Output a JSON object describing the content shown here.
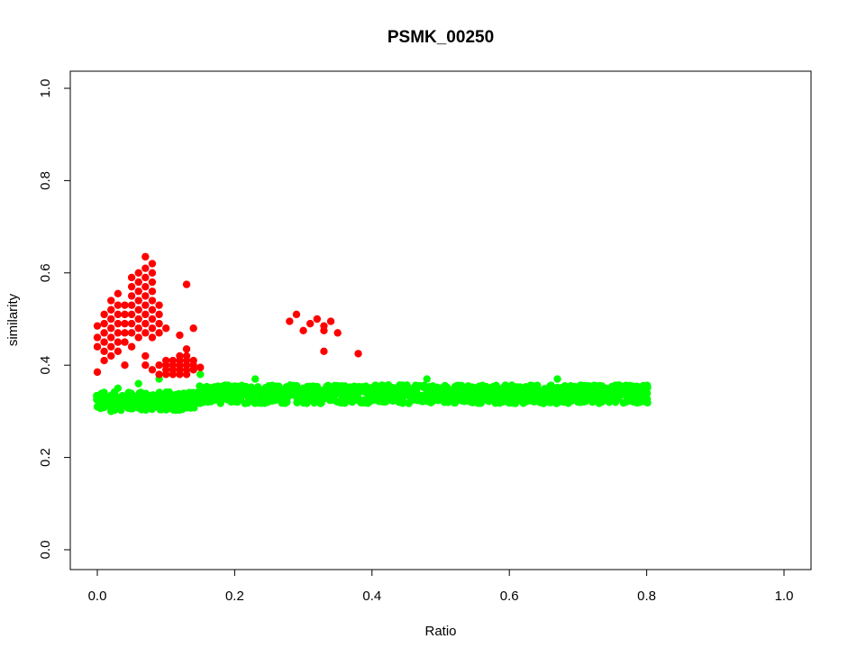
{
  "chart_data": {
    "type": "scatter",
    "title": "PSMK_00250",
    "xlabel": "Ratio",
    "ylabel": "similarity",
    "xlim": [
      0.0,
      1.0
    ],
    "ylim": [
      0.0,
      1.0
    ],
    "xticks": [
      "0.0",
      "0.2",
      "0.4",
      "0.6",
      "0.8",
      "1.0"
    ],
    "yticks": [
      "0.0",
      "0.2",
      "0.4",
      "0.6",
      "0.8",
      "1.0"
    ],
    "grid": false,
    "legend": "none",
    "series": [
      {
        "color": "#00ff00",
        "description_points": "dense band from x=0.0 to x=0.8 with similarity about 0.31-0.37",
        "x_range": [
          0.0,
          0.8
        ],
        "y_band": [
          0.31,
          0.37
        ],
        "extra_points": [
          [
            0.0,
            0.31
          ],
          [
            0.01,
            0.33
          ],
          [
            0.02,
            0.3
          ],
          [
            0.03,
            0.35
          ],
          [
            0.06,
            0.36
          ],
          [
            0.09,
            0.37
          ],
          [
            0.15,
            0.38
          ],
          [
            0.23,
            0.37
          ],
          [
            0.48,
            0.37
          ],
          [
            0.67,
            0.37
          ]
        ]
      },
      {
        "color": "#ff0000",
        "points": [
          [
            0.0,
            0.385
          ],
          [
            0.0,
            0.485
          ],
          [
            0.0,
            0.46
          ],
          [
            0.0,
            0.44
          ],
          [
            0.01,
            0.51
          ],
          [
            0.01,
            0.49
          ],
          [
            0.01,
            0.47
          ],
          [
            0.01,
            0.45
          ],
          [
            0.01,
            0.43
          ],
          [
            0.01,
            0.41
          ],
          [
            0.02,
            0.54
          ],
          [
            0.02,
            0.52
          ],
          [
            0.02,
            0.5
          ],
          [
            0.02,
            0.48
          ],
          [
            0.02,
            0.46
          ],
          [
            0.02,
            0.44
          ],
          [
            0.02,
            0.42
          ],
          [
            0.03,
            0.555
          ],
          [
            0.03,
            0.53
          ],
          [
            0.03,
            0.51
          ],
          [
            0.03,
            0.49
          ],
          [
            0.03,
            0.47
          ],
          [
            0.03,
            0.45
          ],
          [
            0.03,
            0.43
          ],
          [
            0.04,
            0.53
          ],
          [
            0.04,
            0.51
          ],
          [
            0.04,
            0.49
          ],
          [
            0.04,
            0.47
          ],
          [
            0.04,
            0.45
          ],
          [
            0.04,
            0.4
          ],
          [
            0.05,
            0.59
          ],
          [
            0.05,
            0.57
          ],
          [
            0.05,
            0.55
          ],
          [
            0.05,
            0.53
          ],
          [
            0.05,
            0.51
          ],
          [
            0.05,
            0.49
          ],
          [
            0.05,
            0.47
          ],
          [
            0.05,
            0.44
          ],
          [
            0.06,
            0.6
          ],
          [
            0.06,
            0.58
          ],
          [
            0.06,
            0.56
          ],
          [
            0.06,
            0.54
          ],
          [
            0.06,
            0.52
          ],
          [
            0.06,
            0.5
          ],
          [
            0.06,
            0.48
          ],
          [
            0.06,
            0.46
          ],
          [
            0.07,
            0.635
          ],
          [
            0.07,
            0.61
          ],
          [
            0.07,
            0.59
          ],
          [
            0.07,
            0.57
          ],
          [
            0.07,
            0.55
          ],
          [
            0.07,
            0.53
          ],
          [
            0.07,
            0.51
          ],
          [
            0.07,
            0.49
          ],
          [
            0.07,
            0.47
          ],
          [
            0.07,
            0.42
          ],
          [
            0.07,
            0.4
          ],
          [
            0.08,
            0.62
          ],
          [
            0.08,
            0.6
          ],
          [
            0.08,
            0.58
          ],
          [
            0.08,
            0.56
          ],
          [
            0.08,
            0.54
          ],
          [
            0.08,
            0.52
          ],
          [
            0.08,
            0.5
          ],
          [
            0.08,
            0.48
          ],
          [
            0.08,
            0.46
          ],
          [
            0.08,
            0.39
          ],
          [
            0.09,
            0.53
          ],
          [
            0.09,
            0.51
          ],
          [
            0.09,
            0.49
          ],
          [
            0.09,
            0.47
          ],
          [
            0.09,
            0.4
          ],
          [
            0.09,
            0.38
          ],
          [
            0.1,
            0.48
          ],
          [
            0.1,
            0.41
          ],
          [
            0.1,
            0.4
          ],
          [
            0.1,
            0.39
          ],
          [
            0.1,
            0.38
          ],
          [
            0.11,
            0.41
          ],
          [
            0.11,
            0.4
          ],
          [
            0.11,
            0.39
          ],
          [
            0.11,
            0.38
          ],
          [
            0.12,
            0.42
          ],
          [
            0.12,
            0.41
          ],
          [
            0.12,
            0.4
          ],
          [
            0.12,
            0.39
          ],
          [
            0.12,
            0.38
          ],
          [
            0.12,
            0.465
          ],
          [
            0.13,
            0.575
          ],
          [
            0.13,
            0.435
          ],
          [
            0.13,
            0.42
          ],
          [
            0.13,
            0.41
          ],
          [
            0.13,
            0.4
          ],
          [
            0.13,
            0.39
          ],
          [
            0.13,
            0.38
          ],
          [
            0.14,
            0.48
          ],
          [
            0.14,
            0.41
          ],
          [
            0.14,
            0.4
          ],
          [
            0.14,
            0.39
          ],
          [
            0.15,
            0.395
          ],
          [
            0.28,
            0.495
          ],
          [
            0.29,
            0.51
          ],
          [
            0.3,
            0.475
          ],
          [
            0.31,
            0.49
          ],
          [
            0.32,
            0.5
          ],
          [
            0.33,
            0.485
          ],
          [
            0.33,
            0.43
          ],
          [
            0.33,
            0.475
          ],
          [
            0.34,
            0.495
          ],
          [
            0.35,
            0.47
          ],
          [
            0.38,
            0.425
          ]
        ]
      }
    ]
  }
}
